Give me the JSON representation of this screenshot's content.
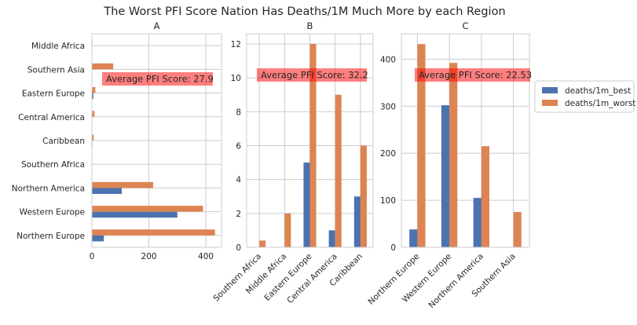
{
  "figure": {
    "title": "The Worst PFI Score Nation Has Deaths/1M Much More by each Region"
  },
  "legend": {
    "placement": "right",
    "entries": [
      {
        "name": "deaths/1m_best",
        "color": "#4c72b0"
      },
      {
        "name": "deaths/1m_worst",
        "color": "#dd8452"
      }
    ]
  },
  "chart_data": [
    {
      "type": "bar",
      "orientation": "horizontal",
      "title": "A",
      "categories": [
        "Northern Europe",
        "Western Europe",
        "Northern America",
        "Southern Africa",
        "Caribbean",
        "Central America",
        "Eastern Europe",
        "Southern Asia",
        "Middle Africa"
      ],
      "series": [
        {
          "name": "deaths/1m_best",
          "values": [
            42,
            300,
            105,
            0,
            2,
            1,
            5,
            0,
            0
          ]
        },
        {
          "name": "deaths/1m_worst",
          "values": [
            432,
            390,
            215,
            0,
            6,
            9,
            12,
            75,
            2
          ]
        }
      ],
      "xticks": [
        0,
        200,
        400
      ],
      "xlim": [
        0,
        455
      ],
      "annotation": "Average PFI Score: 27.9",
      "grid": true
    },
    {
      "type": "bar",
      "orientation": "vertical",
      "title": "B",
      "categories": [
        "Southern Africa",
        "Middle Africa",
        "Eastern Europe",
        "Central America",
        "Caribbean"
      ],
      "series": [
        {
          "name": "deaths/1m_best",
          "values": [
            0,
            0,
            5,
            1,
            3
          ]
        },
        {
          "name": "deaths/1m_worst",
          "values": [
            0.4,
            2,
            12,
            9,
            6
          ]
        }
      ],
      "yticks": [
        0,
        2,
        4,
        6,
        8,
        10,
        12
      ],
      "ylim": [
        0,
        12.6
      ],
      "annotation": "Average PFI Score: 32.2",
      "grid": true
    },
    {
      "type": "bar",
      "orientation": "vertical",
      "title": "C",
      "categories": [
        "Northern Europe",
        "Western Europe",
        "Northern America",
        "Southern Asia"
      ],
      "series": [
        {
          "name": "deaths/1m_best",
          "values": [
            38,
            302,
            105,
            0
          ]
        },
        {
          "name": "deaths/1m_worst",
          "values": [
            432,
            392,
            215,
            75
          ]
        }
      ],
      "yticks": [
        0,
        100,
        200,
        300,
        400
      ],
      "ylim": [
        0,
        454
      ],
      "annotation": "Average PFI Score: 22.53",
      "grid": true
    }
  ]
}
